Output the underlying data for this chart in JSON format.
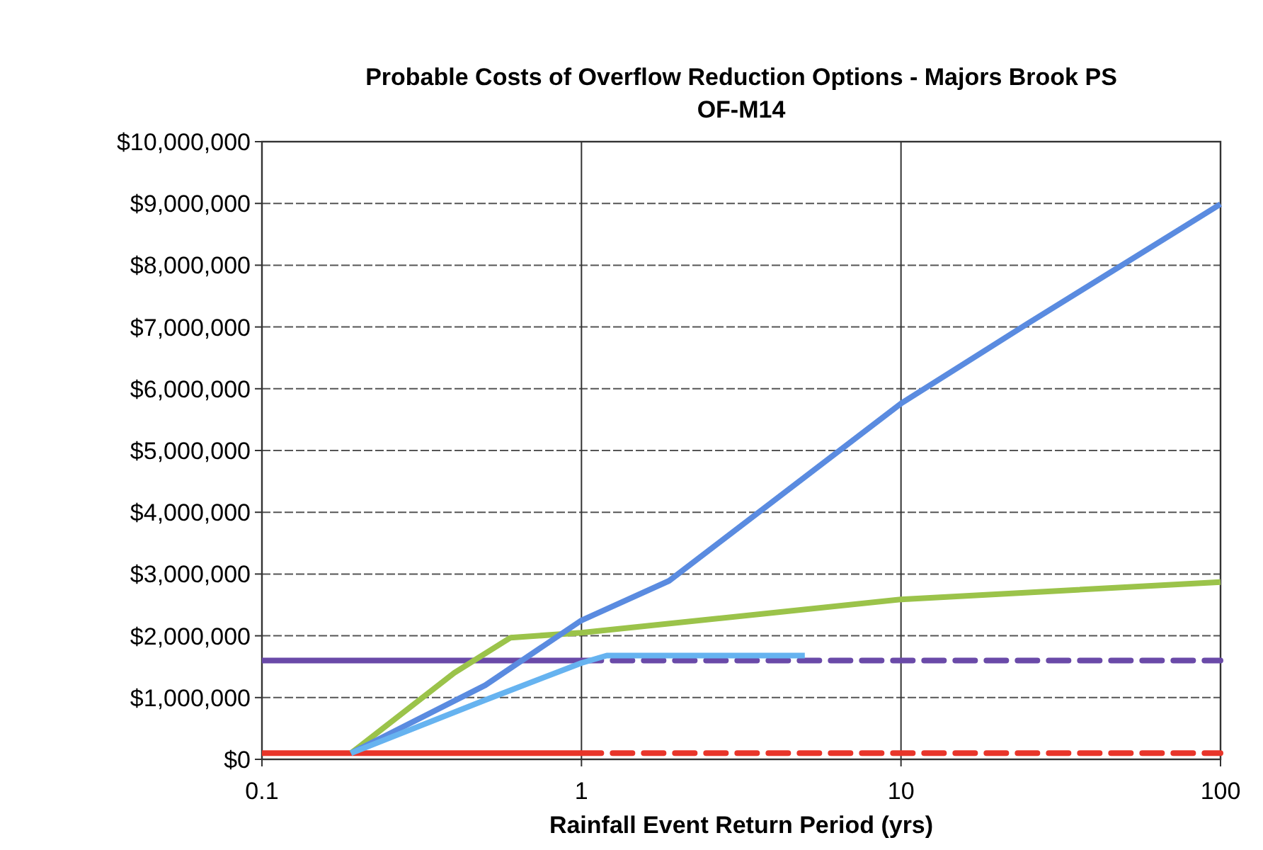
{
  "chart_data": {
    "type": "line",
    "title": "Probable Costs of Overflow Reduction Options - Majors Brook PS",
    "subtitle": "OF-M14",
    "xlabel": "Rainfall Event Return Period (yrs)",
    "log": "x",
    "grid": true,
    "marker": "none",
    "xlim": [
      0.1,
      100
    ],
    "xticks": [
      0.1,
      1,
      10,
      100
    ],
    "ylim": [
      0,
      10000000
    ],
    "yticks": [
      {
        "value": 0,
        "label": "$0"
      },
      {
        "value": 1000000,
        "label": "$1,000,000"
      },
      {
        "value": 2000000,
        "label": "$2,000,000"
      },
      {
        "value": 3000000,
        "label": "$3,000,000"
      },
      {
        "value": 4000000,
        "label": "$4,000,000"
      },
      {
        "value": 5000000,
        "label": "$5,000,000"
      },
      {
        "value": 6000000,
        "label": "$6,000,000"
      },
      {
        "value": 7000000,
        "label": "$7,000,000"
      },
      {
        "value": 8000000,
        "label": "$8,000,000"
      },
      {
        "value": 9000000,
        "label": "$9,000,000"
      },
      {
        "value": 10000000,
        "label": "$10,000,000"
      }
    ],
    "series": [
      {
        "color": "#6a4aa8",
        "line_style": "solid",
        "x": [
          0.1,
          1
        ],
        "values": [
          1600000,
          1600000
        ]
      },
      {
        "color": "#6a4aa8",
        "line_style": "dashed",
        "x": [
          1,
          100
        ],
        "values": [
          1600000,
          1600000
        ]
      },
      {
        "color": "#e8352a",
        "line_style": "solid",
        "x": [
          0.1,
          1
        ],
        "values": [
          100000,
          100000
        ]
      },
      {
        "color": "#e8352a",
        "line_style": "dashed",
        "x": [
          1,
          100
        ],
        "values": [
          100000,
          100000
        ]
      },
      {
        "color": "#9bc34a",
        "line_style": "solid",
        "x": [
          0.19,
          0.4,
          0.6,
          1,
          10,
          100
        ],
        "values": [
          100000,
          1400000,
          1970000,
          2050000,
          2590000,
          2870000
        ]
      },
      {
        "color": "#5a8be0",
        "line_style": "solid",
        "x": [
          0.19,
          0.5,
          1,
          1.88,
          10,
          25,
          100
        ],
        "values": [
          100000,
          1200000,
          2250000,
          2890000,
          5760000,
          7060000,
          8990000
        ]
      },
      {
        "color": "#66b3f0",
        "line_style": "solid",
        "x": [
          0.19,
          0.5,
          1,
          1.2,
          5
        ],
        "values": [
          100000,
          960000,
          1560000,
          1680000,
          1680000
        ]
      }
    ]
  }
}
